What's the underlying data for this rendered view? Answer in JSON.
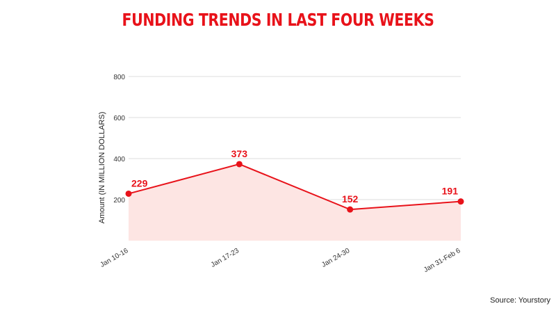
{
  "header": {
    "title": "FUNDING TRENDS IN LAST FOUR WEEKS"
  },
  "footer": {
    "source": "Source: Yourstory"
  },
  "colors": {
    "accent": "#e8121a",
    "fill": "#fde5e3",
    "grid": "#dcdcdc"
  },
  "chart_data": {
    "type": "area",
    "title": "FUNDING TRENDS IN LAST FOUR WEEKS",
    "xlabel": "",
    "ylabel": "Amount (IN MILLION DOLLARS)",
    "categories": [
      "Jan 10-16",
      "Jan 17-23",
      "Jan 24-30",
      "Jan 31-Feb 6"
    ],
    "values": [
      229,
      373,
      152,
      191
    ],
    "data_labels": [
      "229",
      "373",
      "152",
      "191"
    ],
    "y_ticks": [
      200,
      400,
      600,
      800
    ],
    "y_tick_labels": [
      "200",
      "400",
      "600",
      "800"
    ],
    "ylim": [
      0,
      800
    ],
    "grid": true,
    "legend": "none",
    "markers": true
  }
}
